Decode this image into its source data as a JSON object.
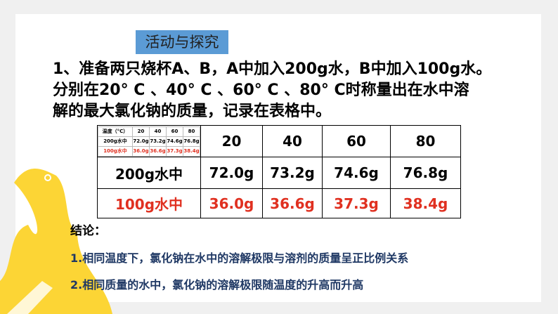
{
  "title_box": "活动与探究",
  "question": [
    "1、准备两只烧杯A、B，A中加入200g水，B中加入100g水。",
    "分别在20° C 、40° C 、60° C 、80° C时称量出在水中溶",
    "解的最大氯化钠的质量，记录在表格中。"
  ],
  "table": {
    "mini": {
      "header": [
        "温度（°C）",
        "20",
        "40",
        "60",
        "80"
      ],
      "row1": [
        "200g水中",
        "72.0g",
        "73.2g",
        "74.6g",
        "76.8g"
      ],
      "row2": [
        "100g水中",
        "36.0g",
        "36.6g",
        "37.3g",
        "38.4g"
      ]
    },
    "header": [
      "20",
      "40",
      "60",
      "80"
    ],
    "row1": [
      "200g水中",
      "72.0g",
      "73.2g",
      "74.6g",
      "76.8g"
    ],
    "row2": [
      "100g水中",
      "36.0g",
      "36.6g",
      "37.3g",
      "38.4g"
    ]
  },
  "conclusion": {
    "label": "结论：",
    "lines": [
      "1.相同温度下，氯化钠在水中的溶解极限与溶剂的质量呈正比例关系",
      "2.相同质量的水中，氯化钠的溶解极限随温度的升高而升高"
    ]
  },
  "colors": {
    "accent_box": "#5b9bd5",
    "red": "#e03020",
    "blue_text": "#1f3864",
    "yellow": "#fcd535"
  }
}
